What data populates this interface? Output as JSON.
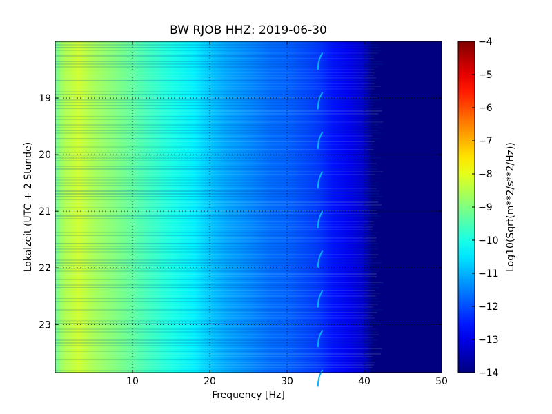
{
  "chart_data": {
    "type": "heatmap",
    "title": "BW RJOB HHZ: 2019-06-30",
    "xlabel": "Frequency [Hz]",
    "ylabel": "Lokalzeit (UTC + 2 Stunde)",
    "colorbar_label": "Log10(Sqrt(m**2/s**2/Hz))",
    "xlim": [
      0,
      50
    ],
    "ylim": [
      18.0,
      23.85
    ],
    "y_direction": "downward",
    "x_ticks": [
      10,
      20,
      30,
      40,
      50
    ],
    "y_ticks": [
      19,
      20,
      21,
      22,
      23
    ],
    "colorbar_range": [
      -14,
      -4
    ],
    "colorbar_ticks": [
      -4,
      -5,
      -6,
      -7,
      -8,
      -9,
      -10,
      -11,
      -12,
      -13,
      -14
    ],
    "colormap": "jet",
    "grid": true,
    "spectrum_profile": {
      "frequency": [
        0,
        1,
        3,
        5,
        8,
        10,
        12,
        15,
        18,
        20,
        22,
        25,
        28,
        30,
        32,
        34,
        36,
        38,
        40,
        41,
        42,
        50
      ],
      "level": [
        -9.2,
        -8.6,
        -8.2,
        -8.6,
        -9.0,
        -9.3,
        -9.6,
        -10.0,
        -10.4,
        -10.8,
        -11.1,
        -11.4,
        -11.7,
        -11.8,
        -12.0,
        -12.2,
        -12.6,
        -12.9,
        -13.3,
        -14.0,
        -14.0,
        -14.0
      ]
    },
    "tonal_line_frequency": 34.3,
    "tonal_line_level": -11.0
  }
}
